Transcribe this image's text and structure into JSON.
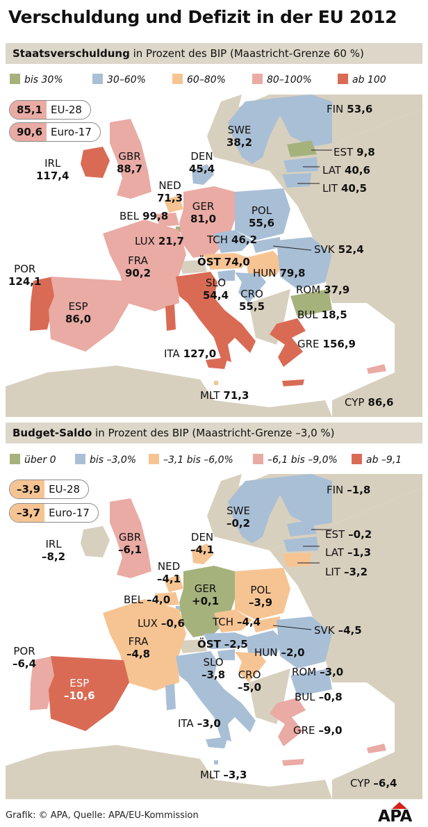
{
  "title": "Verschuldung und Defizit in der EU 2012",
  "colors": {
    "land": "#d8d0be",
    "sea": "#ffffff",
    "debt": {
      "bis30": "#a5b27c",
      "30_60": "#a9bfd6",
      "60_80": "#f6c493",
      "80_100": "#e9aba4",
      "ab100": "#d96b55"
    },
    "saldo": {
      "ueber0": "#a5b27c",
      "bis3": "#a9bfd6",
      "3_6": "#f6c493",
      "6_9": "#e9aba4",
      "ab9": "#d96b55"
    }
  },
  "debt": {
    "header_bold": "Staatsverschuldung",
    "header_rest": "in Prozent des BIP (Maastricht-Grenze 60 %)",
    "legend": [
      "bis 30%",
      "30–60%",
      "60–80%",
      "80–100%",
      "ab 100"
    ],
    "eu28": {
      "value": "85,1",
      "label": "EU-28"
    },
    "euro17": {
      "value": "90,6",
      "label": "Euro-17"
    },
    "countries": {
      "IRL": {
        "code": "IRL",
        "value": "117,4"
      },
      "GBR": {
        "code": "GBR",
        "value": "88,7"
      },
      "DEN": {
        "code": "DEN",
        "value": "45,4"
      },
      "SWE": {
        "code": "SWE",
        "value": "38,2"
      },
      "FIN": {
        "code": "FIN",
        "value": "53,6"
      },
      "EST": {
        "code": "EST",
        "value": "9,8"
      },
      "LAT": {
        "code": "LAT",
        "value": "40,6"
      },
      "LIT": {
        "code": "LIT",
        "value": "40,5"
      },
      "NED": {
        "code": "NED",
        "value": "71,3"
      },
      "BEL": {
        "code": "BEL",
        "value": "99,8"
      },
      "LUX": {
        "code": "LUX",
        "value": "21,7"
      },
      "GER": {
        "code": "GER",
        "value": "81,0"
      },
      "POL": {
        "code": "POL",
        "value": "55,6"
      },
      "TCH": {
        "code": "TCH",
        "value": "46,2"
      },
      "SVK": {
        "code": "SVK",
        "value": "52,4"
      },
      "OST": {
        "code": "ÖST",
        "value": "74,0"
      },
      "HUN": {
        "code": "HUN",
        "value": "79,8"
      },
      "ROM": {
        "code": "ROM",
        "value": "37,9"
      },
      "SLO": {
        "code": "SLO",
        "value": "54,4"
      },
      "CRO": {
        "code": "CRO",
        "value": "55,5"
      },
      "BUL": {
        "code": "BUL",
        "value": "18,5"
      },
      "FRA": {
        "code": "FRA",
        "value": "90,2"
      },
      "POR": {
        "code": "POR",
        "value": "124,1"
      },
      "ESP": {
        "code": "ESP",
        "value": "86,0"
      },
      "ITA": {
        "code": "ITA",
        "value": "127,0"
      },
      "GRE": {
        "code": "GRE",
        "value": "156,9"
      },
      "MLT": {
        "code": "MLT",
        "value": "71,3"
      },
      "CYP": {
        "code": "CYP",
        "value": "86,6"
      }
    }
  },
  "saldo": {
    "header_bold": "Budget-Saldo",
    "header_rest": "in Prozent des BIP (Maastricht-Grenze –3,0 %)",
    "legend": [
      "über 0",
      "bis –3,0%",
      "–3,1 bis –6,0%",
      "–6,1 bis –9,0%",
      "ab –9,1"
    ],
    "eu28": {
      "value": "–3,9",
      "label": "EU-28"
    },
    "euro17": {
      "value": "–3,7",
      "label": "Euro-17"
    },
    "countries": {
      "IRL": {
        "code": "IRL",
        "value": "–8,2"
      },
      "GBR": {
        "code": "GBR",
        "value": "–6,1"
      },
      "DEN": {
        "code": "DEN",
        "value": "–4,1"
      },
      "SWE": {
        "code": "SWE",
        "value": "–0,2"
      },
      "FIN": {
        "code": "FIN",
        "value": "–1,8"
      },
      "EST": {
        "code": "EST",
        "value": "–0,2"
      },
      "LAT": {
        "code": "LAT",
        "value": "–1,3"
      },
      "LIT": {
        "code": "LIT",
        "value": "–3,2"
      },
      "NED": {
        "code": "NED",
        "value": "–4,1"
      },
      "BEL": {
        "code": "BEL",
        "value": "–4,0"
      },
      "LUX": {
        "code": "LUX",
        "value": "–0,6"
      },
      "GER": {
        "code": "GER",
        "value": "+0,1"
      },
      "POL": {
        "code": "POL",
        "value": "–3,9"
      },
      "TCH": {
        "code": "TCH",
        "value": "–4,4"
      },
      "SVK": {
        "code": "SVK",
        "value": "–4,5"
      },
      "OST": {
        "code": "ÖST",
        "value": "–2,5"
      },
      "HUN": {
        "code": "HUN",
        "value": "–2,0"
      },
      "ROM": {
        "code": "ROM",
        "value": "–3,0"
      },
      "SLO": {
        "code": "SLO",
        "value": "–3,8"
      },
      "CRO": {
        "code": "CRO",
        "value": "–5,0"
      },
      "BUL": {
        "code": "BUL",
        "value": "–0,8"
      },
      "FRA": {
        "code": "FRA",
        "value": "–4,8"
      },
      "POR": {
        "code": "POR",
        "value": "–6,4"
      },
      "ESP": {
        "code": "ESP",
        "value": "–10,6"
      },
      "ITA": {
        "code": "ITA",
        "value": "–3,0"
      },
      "GRE": {
        "code": "GRE",
        "value": "–9,0"
      },
      "MLT": {
        "code": "MLT",
        "value": "–3,3"
      },
      "CYP": {
        "code": "CYP",
        "value": "–6,4"
      }
    }
  },
  "footer": "Grafik: © APA, Quelle: APA/EU-Kommission",
  "logo": "APA"
}
